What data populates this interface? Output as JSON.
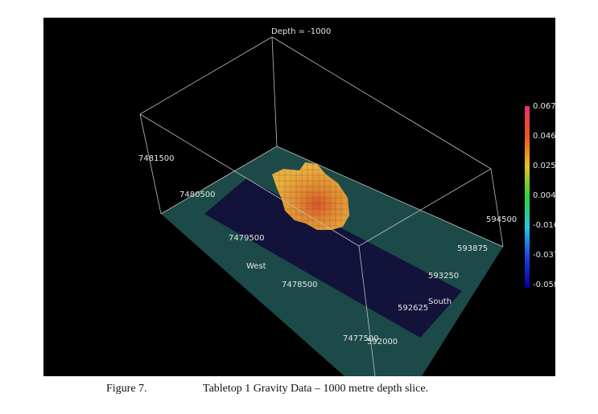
{
  "viewer": {
    "depth_label": "Depth = -1000",
    "labels": {
      "northing_1": "7481500",
      "northing_2": "7480500",
      "northing_3": "7479500",
      "northing_4": "7478500",
      "northing_5": "7477500",
      "easting_1": "594500",
      "easting_2": "593875",
      "easting_3": "593250",
      "easting_4": "592625",
      "easting_5": "592000",
      "west": "West",
      "south": "South"
    },
    "colorbar": {
      "ticks": [
        "0.0676",
        "0.0465",
        "0.0255",
        "0.00438",
        "-0.0167",
        "-0.0378",
        "-0.0589"
      ],
      "colors": [
        "#e8306a",
        "#e85a1c",
        "#e8c020",
        "#30d040",
        "#20c8e0",
        "#2040e0",
        "#0000a0"
      ]
    },
    "colors": {
      "background": "#000000",
      "slice": "#1c4a48",
      "band": "#12123a",
      "anomaly_core": "#d8582a",
      "anomaly_mid": "#e08a34",
      "anomaly_edge": "#e8b040",
      "box_lines": "#bfbfbf"
    }
  },
  "caption": {
    "figure_label": "Figure 7.",
    "text": "Tabletop 1 Gravity Data – 1000 metre depth slice."
  }
}
